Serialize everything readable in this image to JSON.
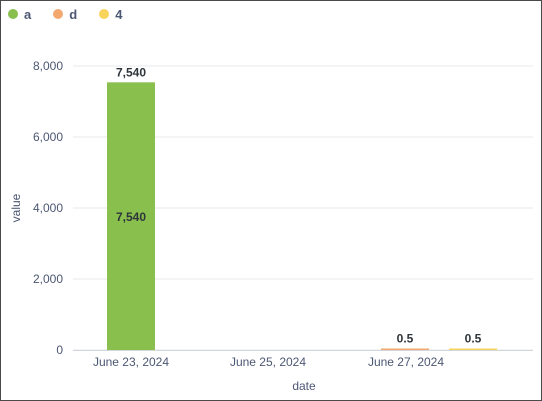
{
  "legend": [
    {
      "label": "a",
      "color": "#88bf4d"
    },
    {
      "label": "d",
      "color": "#f2a86f"
    },
    {
      "label": "4",
      "color": "#f9d45c"
    }
  ],
  "chart_data": {
    "type": "bar",
    "xlabel": "date",
    "ylabel": "value",
    "ylim": [
      0,
      8000
    ],
    "y_ticks": [
      0,
      2000,
      4000,
      6000,
      8000
    ],
    "y_tick_labels": [
      "0",
      "2,000",
      "4,000",
      "6,000",
      "8,000"
    ],
    "categories": [
      "June 23, 2024",
      "June 25, 2024",
      "June 27, 2024"
    ],
    "grid": true,
    "legend_position": "top-left",
    "bars": [
      {
        "series": "a",
        "x": "June 23, 2024",
        "value": 7540,
        "label": "7,540",
        "inner_label": "7,540"
      },
      {
        "series": "d",
        "x": "June 27, 2024",
        "value": 0.5,
        "label": "0.5"
      },
      {
        "series": "4",
        "x": "June 27, 2024",
        "value": 0.5,
        "label": "0.5"
      }
    ]
  }
}
